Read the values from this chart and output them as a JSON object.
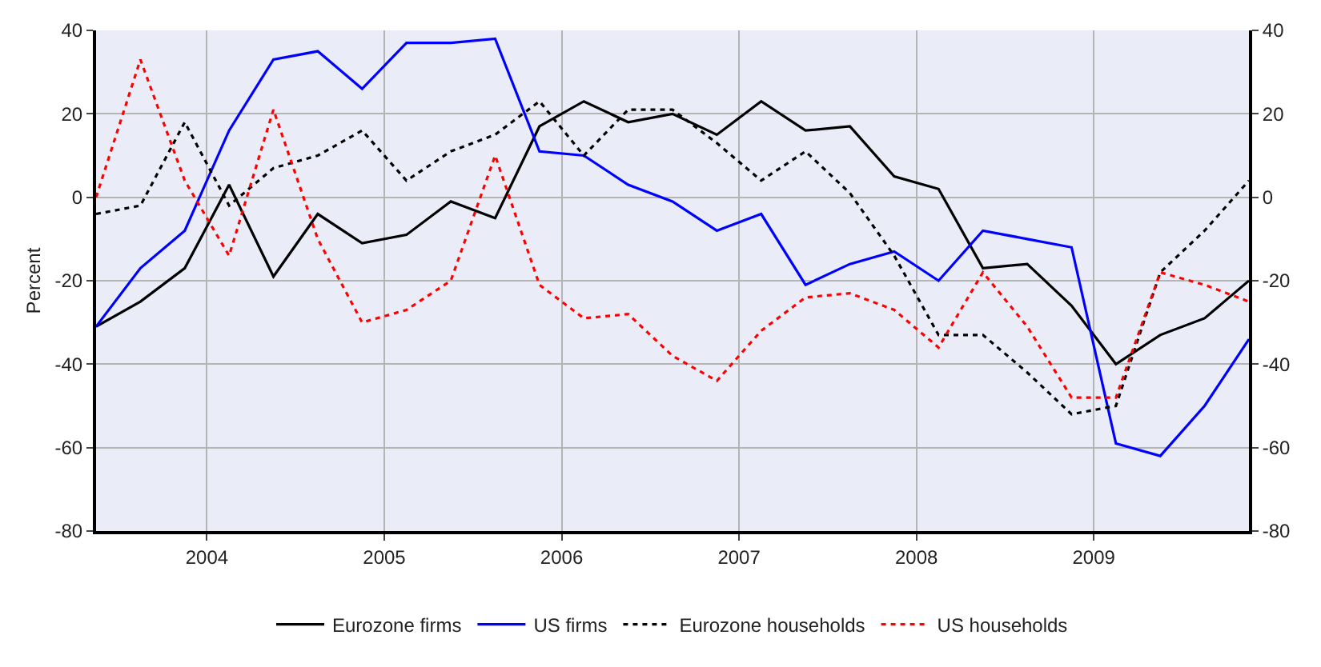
{
  "chart_data": {
    "type": "line",
    "ylabel": "Percent",
    "x": [
      2003.375,
      2003.625,
      2003.875,
      2004.125,
      2004.375,
      2004.625,
      2004.875,
      2005.125,
      2005.375,
      2005.625,
      2005.875,
      2006.125,
      2006.375,
      2006.625,
      2006.875,
      2007.125,
      2007.375,
      2007.625,
      2007.875,
      2008.125,
      2008.375,
      2008.625,
      2008.875,
      2009.125,
      2009.375,
      2009.625,
      2009.875
    ],
    "series": [
      {
        "name": "Eurozone firms",
        "color": "#000000",
        "line_style": "solid",
        "values": [
          -31,
          -25,
          -17,
          3,
          -19,
          -4,
          -11,
          -9,
          -1,
          -5,
          17,
          23,
          18,
          20,
          15,
          23,
          16,
          17,
          5,
          2,
          -17,
          -16,
          -26,
          -40,
          -33,
          -29,
          -20
        ]
      },
      {
        "name": "US firms",
        "color": "#0000ff",
        "line_style": "solid",
        "values": [
          -31,
          -17,
          -8,
          16,
          33,
          35,
          26,
          37,
          37,
          38,
          11,
          10,
          3,
          -1,
          -8,
          -4,
          -21,
          -16,
          -13,
          -20,
          -8,
          -10,
          -12,
          -59,
          -62,
          -50,
          -34
        ]
      },
      {
        "name": "Eurozone households",
        "color": "#000000",
        "line_style": "dotted",
        "values": [
          -4,
          -2,
          18,
          -2,
          7,
          10,
          16,
          4,
          11,
          15,
          23,
          10,
          21,
          21,
          13,
          4,
          11,
          1,
          -14,
          -33,
          -33,
          -42,
          -52,
          -50,
          -18,
          -8,
          4
        ]
      },
      {
        "name": "US households",
        "color": "#ff0000",
        "line_style": "dotted",
        "values": [
          0,
          33,
          4,
          -14,
          21,
          -10,
          -30,
          -27,
          -20,
          10,
          -21,
          -29,
          -28,
          -38,
          -44,
          -32,
          -24,
          -23,
          -27,
          -36,
          -18,
          -31,
          -48,
          -48,
          -18,
          -21,
          -25
        ]
      }
    ],
    "xlim": [
      2003.375,
      2009.875
    ],
    "xticks": [
      2004,
      2005,
      2006,
      2007,
      2008,
      2009
    ],
    "ylim": [
      -80,
      40
    ],
    "yticks": [
      -80,
      -60,
      -40,
      -20,
      0,
      20,
      40
    ],
    "y2lim": [
      -80,
      40
    ],
    "y2ticks": [
      -80,
      -60,
      -40,
      -20,
      0,
      20,
      40
    ],
    "grid": true,
    "legend": "bottom",
    "marker": "none"
  }
}
